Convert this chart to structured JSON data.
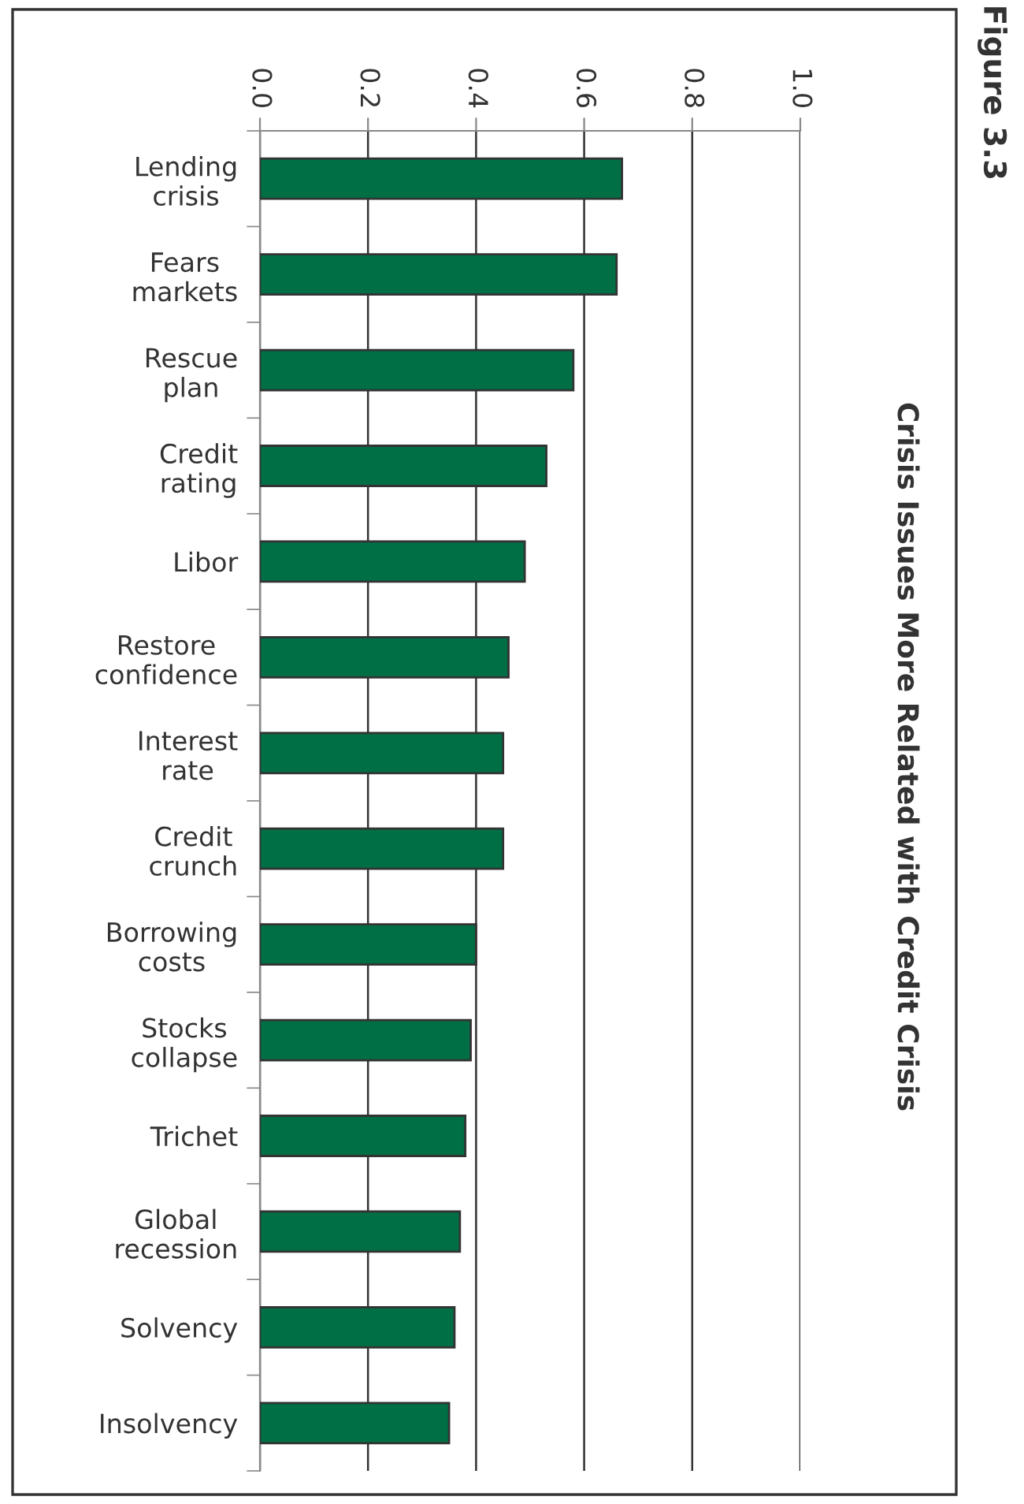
{
  "chart_data": {
    "type": "bar",
    "orientation": "horizontal",
    "title": "Crisis Issues More Related with Credit Crisis",
    "annotations": [
      "Figure 3.3"
    ],
    "categories": [
      "Lending crisis",
      "Fears markets",
      "Rescue plan",
      "Credit rating",
      "Libor",
      "Restore confidence",
      "Interest rate",
      "Credit crunch",
      "Borrowing costs",
      "Stocks collapse",
      "Trichet",
      "Global recession",
      "Solvency",
      "Insolvency"
    ],
    "values": [
      0.67,
      0.66,
      0.58,
      0.53,
      0.49,
      0.46,
      0.45,
      0.45,
      0.4,
      0.39,
      0.38,
      0.37,
      0.36,
      0.35
    ],
    "color": "#006f45",
    "xlim": [
      0.0,
      1.0
    ],
    "xticks": [
      {
        "value": 0,
        "label": "0.0"
      },
      0.2,
      0.4,
      0.6,
      0.8,
      {
        "value": 1,
        "label": "1.0"
      }
    ],
    "grid": "x"
  }
}
